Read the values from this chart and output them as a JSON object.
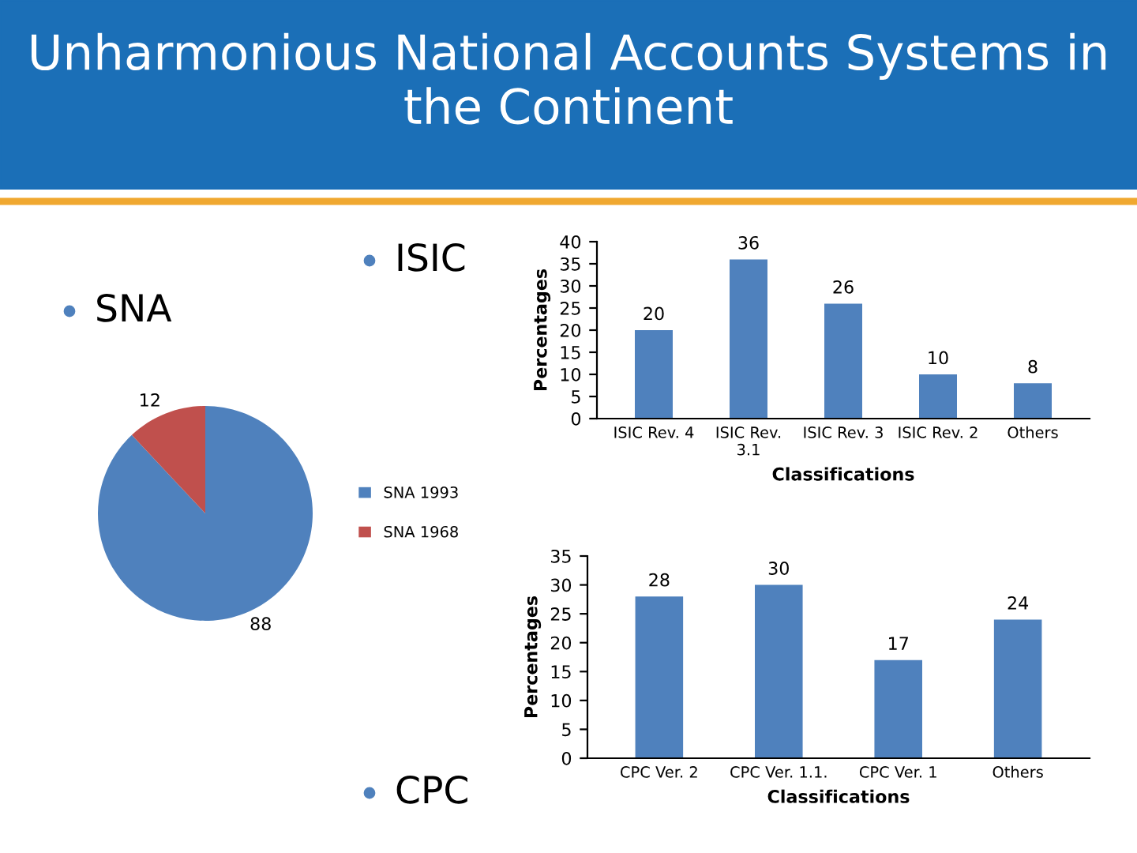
{
  "chart_data": [
    {
      "type": "other",
      "title": "Unharmonious National Accounts Systems in the Continent"
    },
    {
      "type": "pie",
      "title": "SNA",
      "categories": [
        "SNA 1993",
        "SNA 1968"
      ],
      "values": [
        88,
        12
      ],
      "colors": [
        "#4f81bd",
        "#c0504d"
      ],
      "data_labels": true,
      "legend": "right"
    },
    {
      "type": "bar",
      "title": "ISIC",
      "xlabel": "Classifications",
      "ylabel": "Percentages",
      "categories": [
        "ISIC Rev. 4",
        "ISIC Rev.\n3.1",
        "ISIC Rev. 3",
        "ISIC Rev. 2",
        "Others"
      ],
      "values": [
        20,
        36,
        26,
        10,
        8
      ],
      "color": "#4f81bd",
      "ylim": [
        0,
        40
      ],
      "yticks": [
        0,
        5,
        10,
        15,
        20,
        25,
        30,
        35,
        40
      ],
      "data_labels": true
    },
    {
      "type": "bar",
      "title": "CPC",
      "xlabel": "Classifications",
      "ylabel": "Percentages",
      "categories": [
        "CPC Ver. 2",
        "CPC Ver. 1.1.",
        "CPC Ver. 1",
        "Others"
      ],
      "values": [
        28,
        30,
        17,
        24
      ],
      "color": "#4f81bd",
      "ylim": [
        0,
        35
      ],
      "yticks": [
        0,
        5,
        10,
        15,
        20,
        25,
        30,
        35
      ],
      "data_labels": true
    }
  ]
}
